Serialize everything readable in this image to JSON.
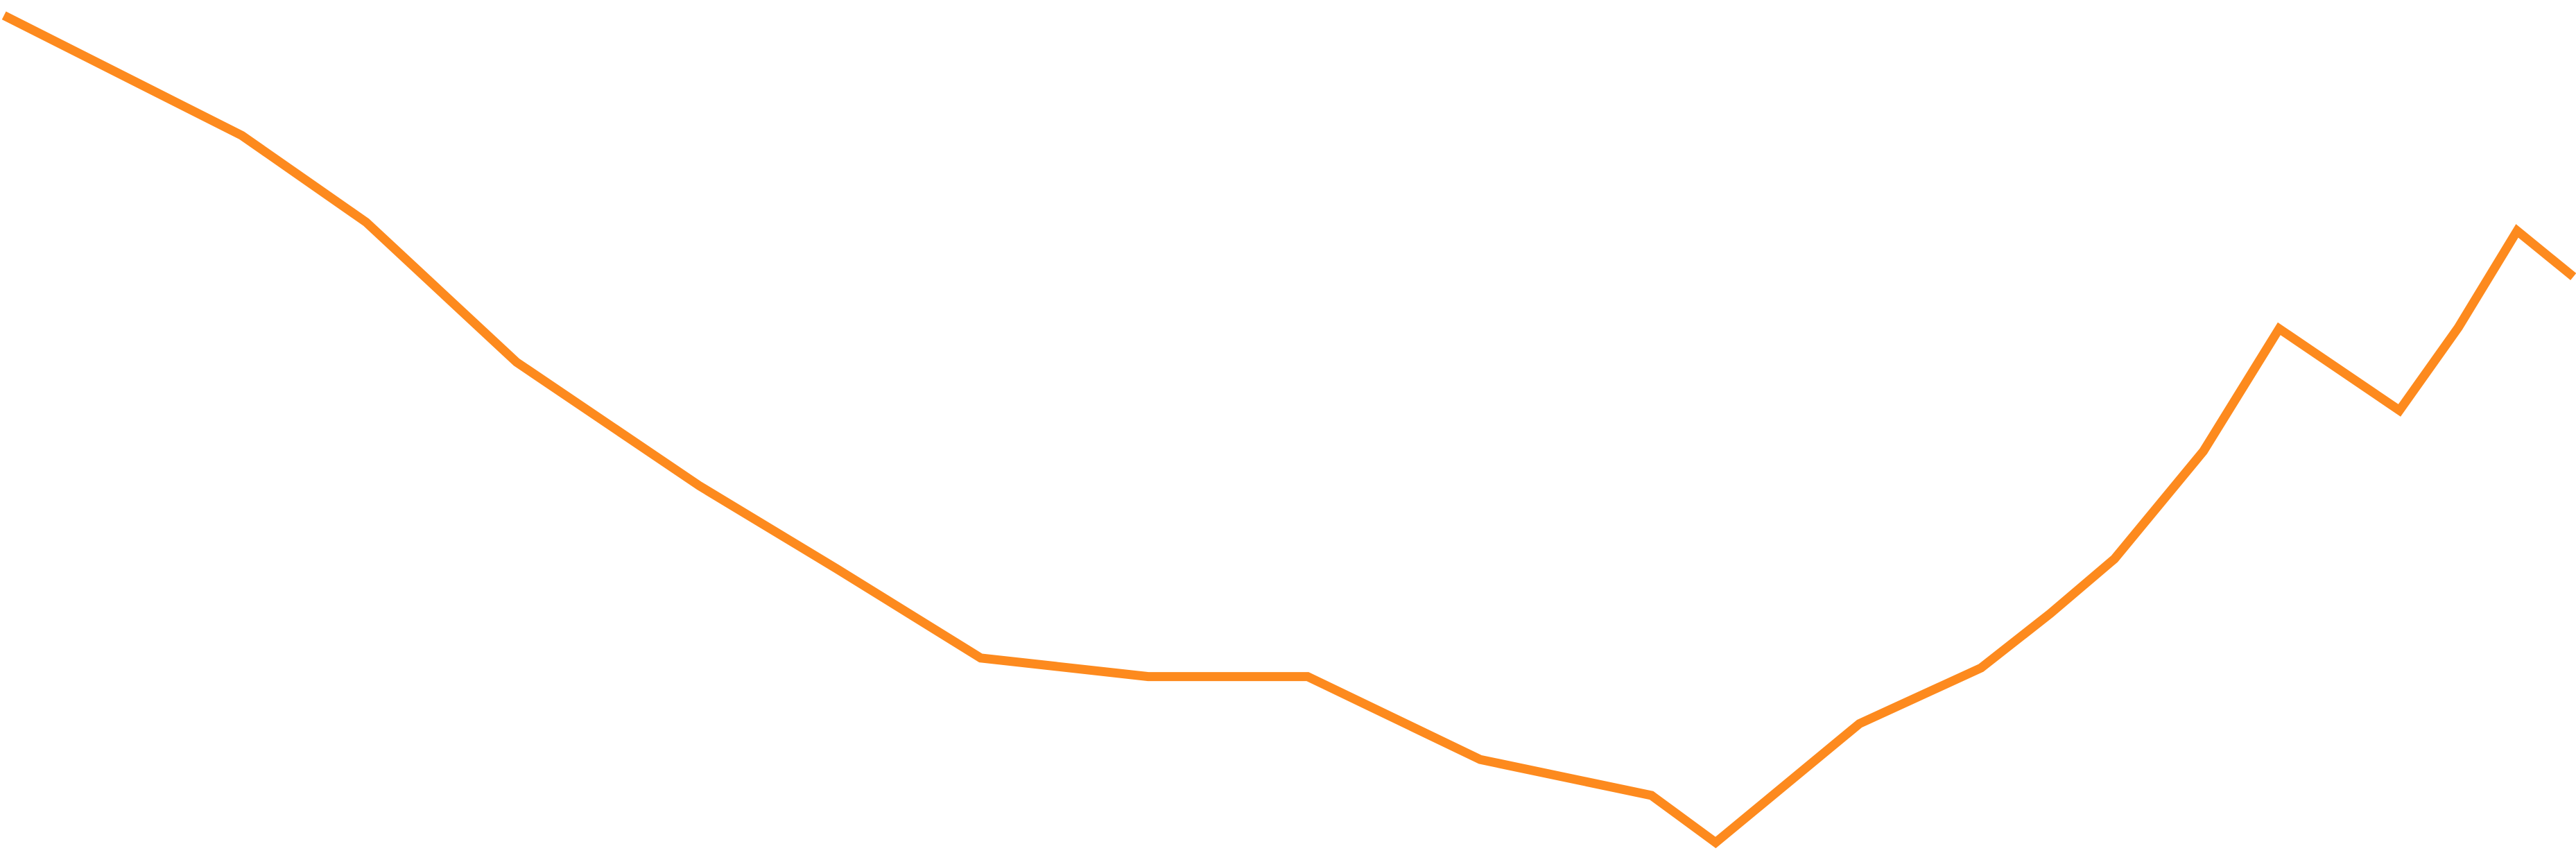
{
  "chart_data": {
    "type": "line",
    "x": [
      3,
      185,
      280,
      395,
      535,
      640,
      750,
      878,
      1000,
      1132,
      1263,
      1312,
      1422,
      1515,
      1568,
      1617,
      1685,
      1743,
      1835,
      1880,
      1925,
      1968
    ],
    "xlim": [
      0,
      1970
    ],
    "ylim": [
      0,
      680
    ],
    "series": [
      {
        "color": "#fd8a1e",
        "values": [
          672,
          575,
          505,
          392,
          292,
          225,
          153,
          138,
          138,
          71,
          42,
          4,
          100,
          145,
          189,
          233,
          320,
          419,
          353,
          420,
          498,
          461
        ]
      }
    ]
  }
}
